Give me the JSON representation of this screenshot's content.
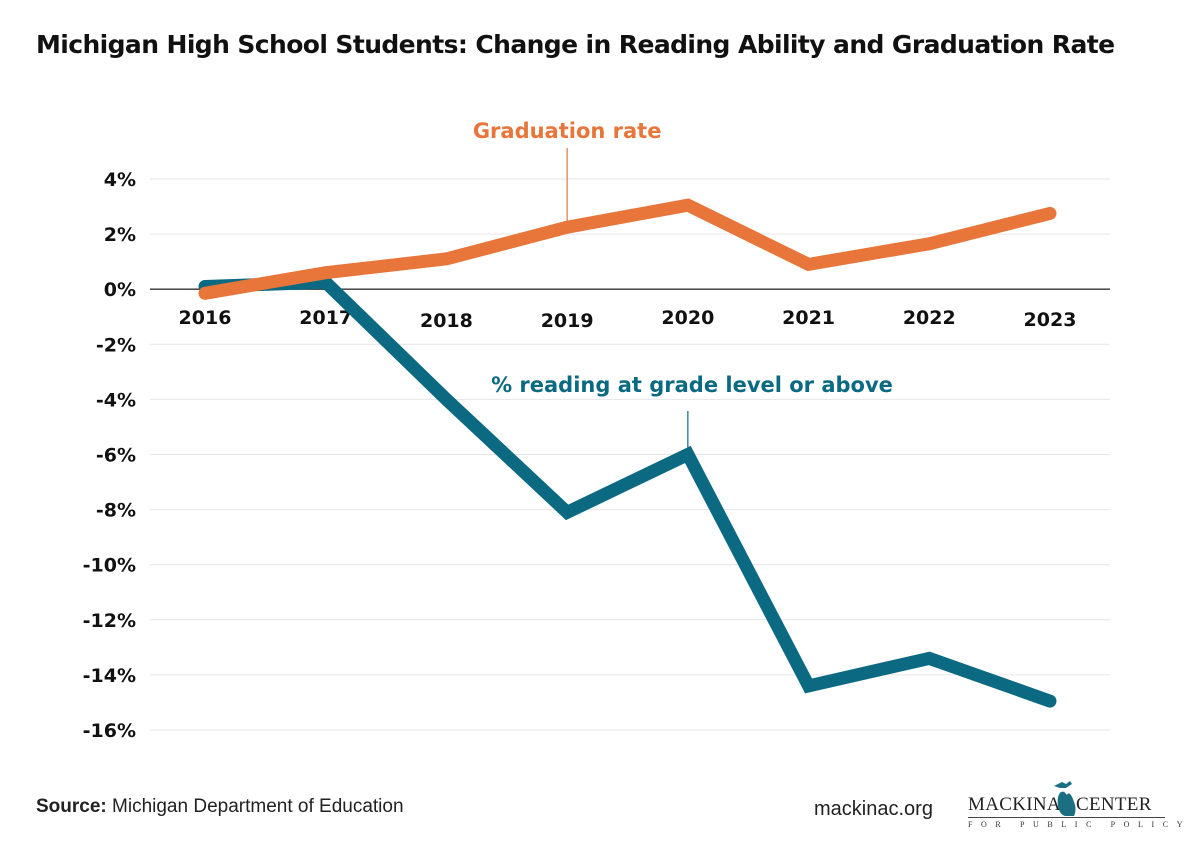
{
  "title": "Michigan High School Students: Change in Reading Ability and Graduation Rate",
  "footer": {
    "source_label": "Source:",
    "source_text": "Michigan Department of Education",
    "website": "mackinac.org",
    "logo_left": "MACKINAC",
    "logo_right": "CENTER",
    "logo_subtitle": "FOR PUBLIC POLICY",
    "logo_icon": "michigan-map-icon"
  },
  "colors": {
    "graduation": "#E8763A",
    "reading": "#0B6A82",
    "grid": "#e6e6e6",
    "axis": "#333333",
    "text": "#111111"
  },
  "chart_data": {
    "type": "line",
    "title": "Michigan High School Students: Change in Reading Ability and Graduation Rate",
    "xlabel": "",
    "ylabel": "",
    "x": [
      "2016",
      "2017",
      "2018",
      "2019",
      "2020",
      "2021",
      "2022",
      "2023"
    ],
    "ylim": [
      -16,
      4
    ],
    "yticks": [
      4,
      2,
      0,
      -2,
      -4,
      -6,
      -8,
      -10,
      -12,
      -14,
      -16
    ],
    "ytick_labels": [
      "4%",
      "2%",
      "0%",
      "-2%",
      "-4%",
      "-6%",
      "-8%",
      "-10%",
      "-12%",
      "-14%",
      "-16%"
    ],
    "grid": true,
    "legend": "inline-annotations",
    "series": [
      {
        "name": "Graduation rate",
        "values": [
          -0.15,
          0.6,
          1.1,
          2.25,
          3.05,
          0.9,
          1.65,
          2.75
        ],
        "annotation": "Graduation rate",
        "annotation_point": "2019"
      },
      {
        "name": "% reading at grade level or above",
        "values": [
          0.1,
          0.25,
          -4.0,
          -8.1,
          -6.0,
          -14.4,
          -13.4,
          -14.95
        ],
        "annotation": "% reading at grade level or above",
        "annotation_point": "2020"
      }
    ]
  }
}
